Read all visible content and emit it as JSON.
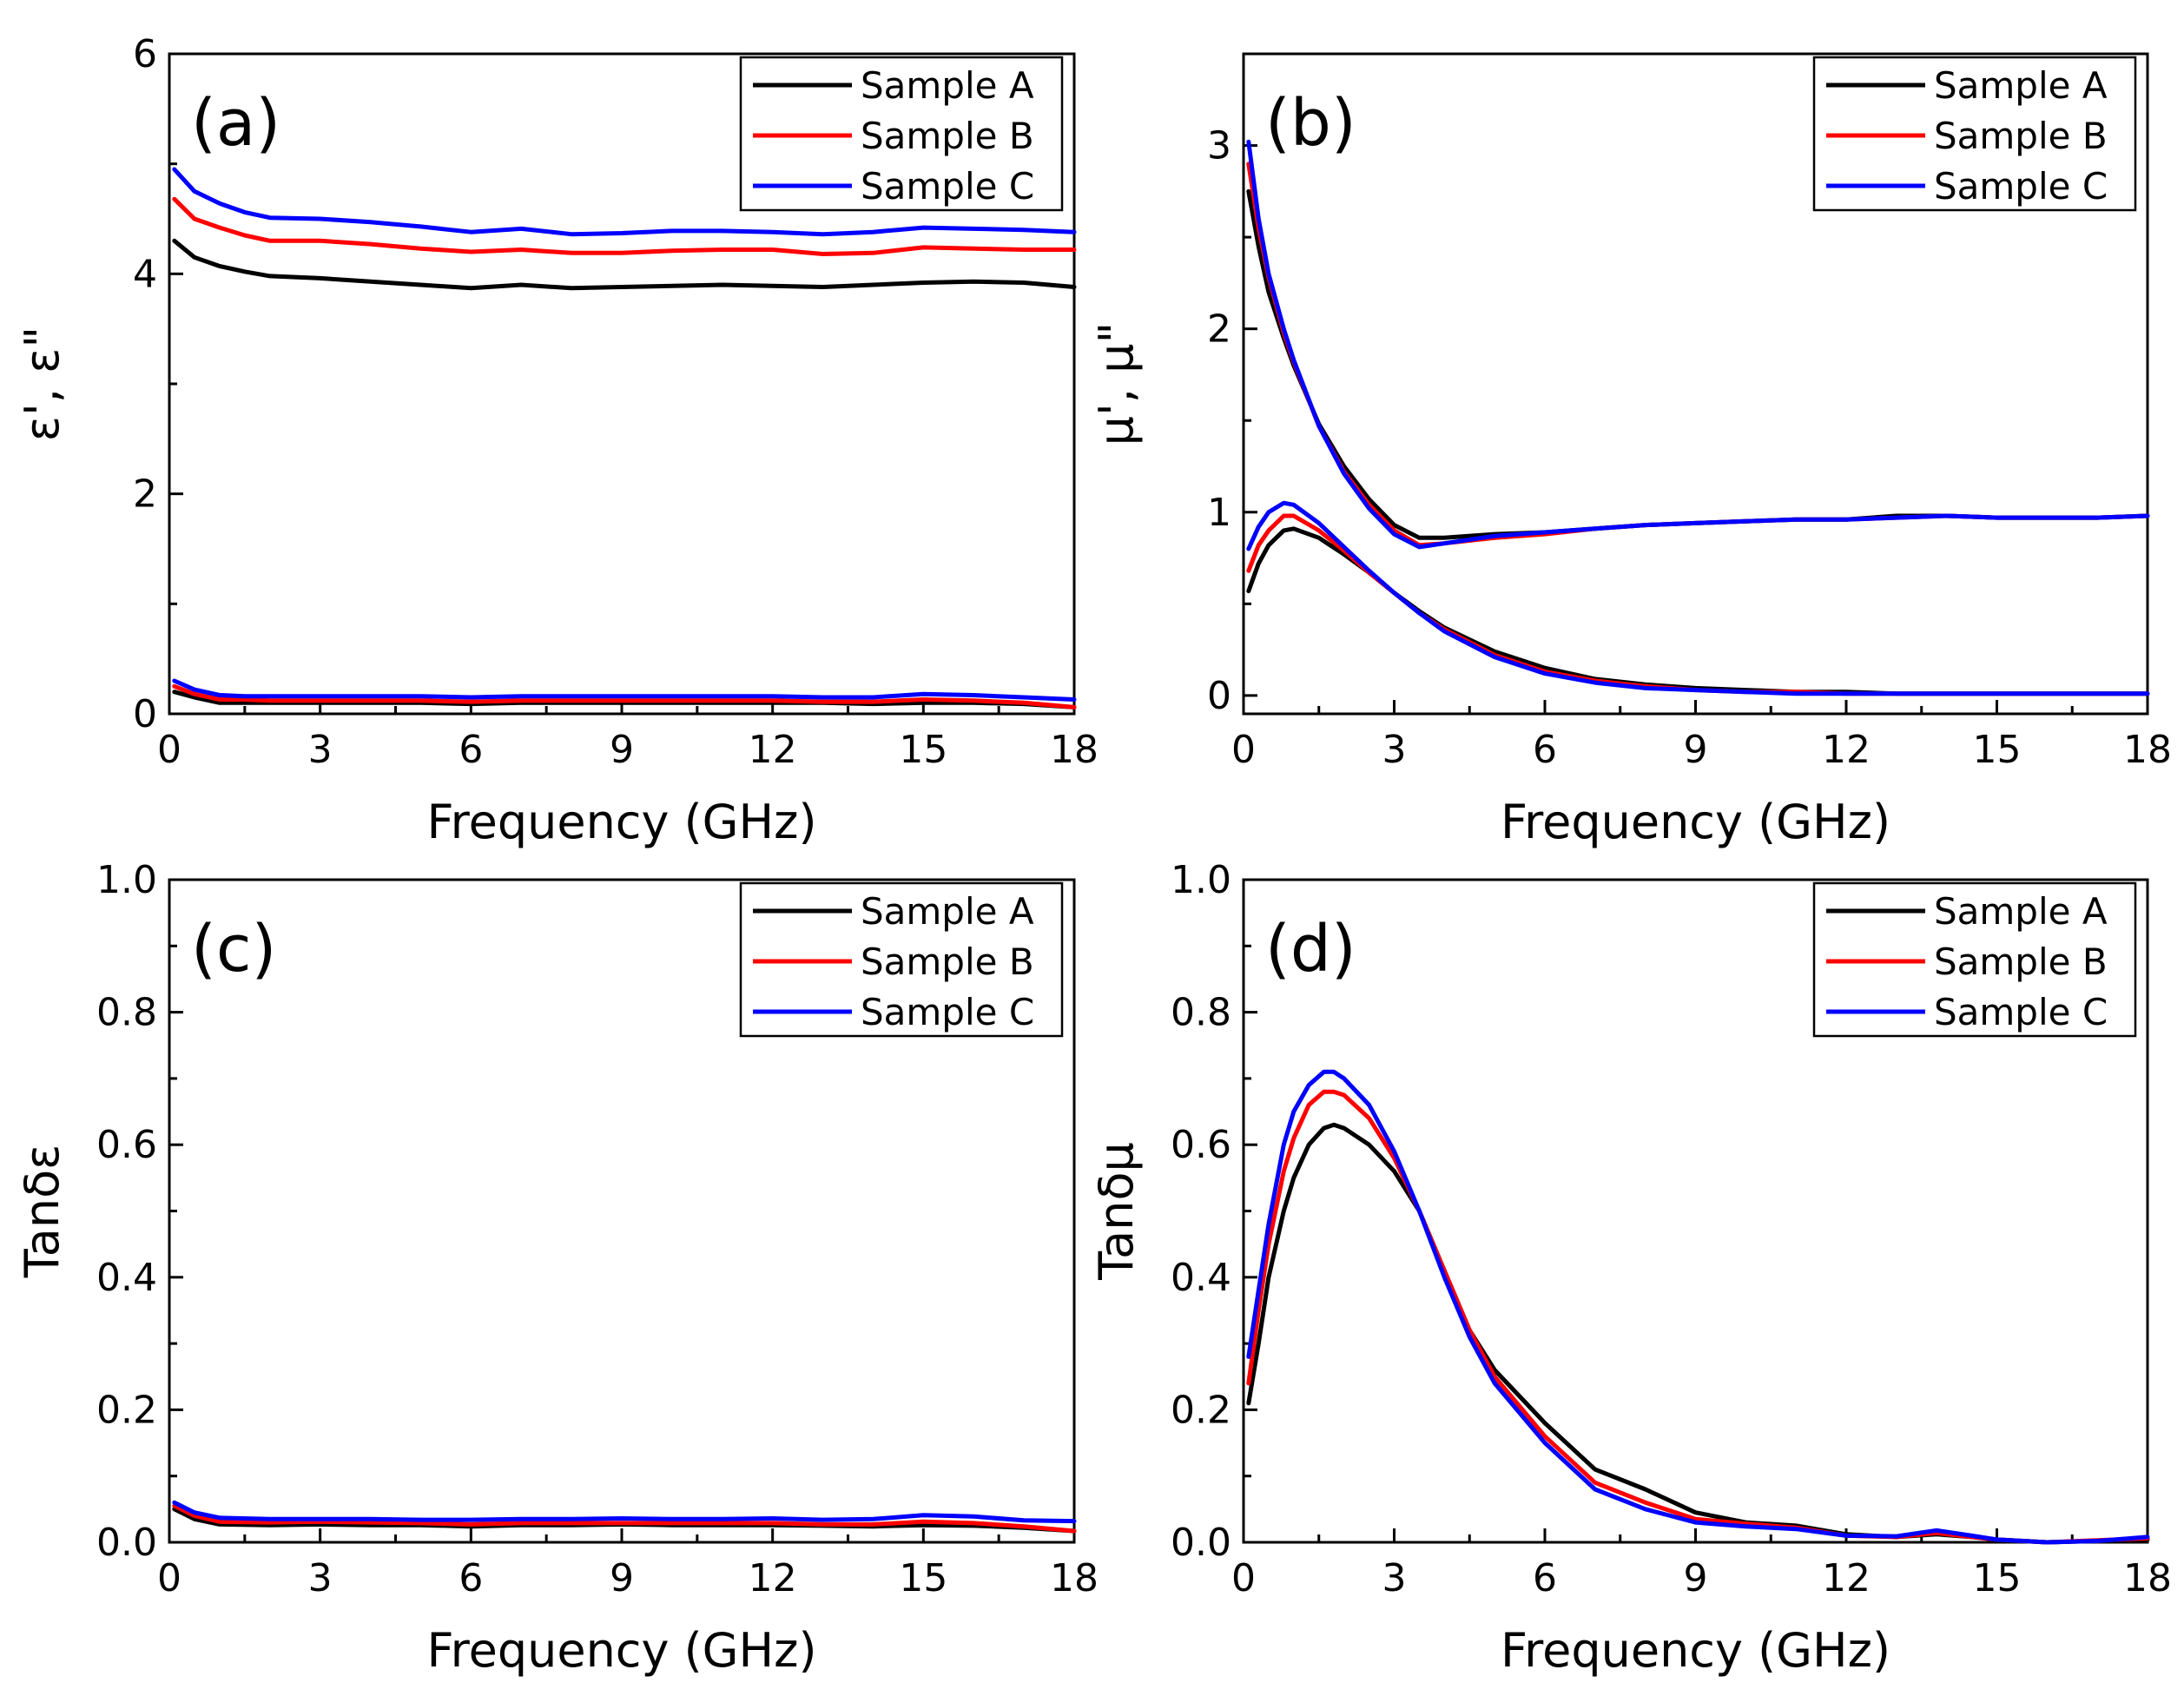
{
  "figure": {
    "legend_entries": [
      "Sample A",
      "Sample B",
      "Sample C"
    ],
    "series_colors": {
      "Sample A": "#000000",
      "Sample B": "#ff0000",
      "Sample C": "#0000ff"
    }
  },
  "chart_data": [
    {
      "panel": "(a)",
      "type": "line",
      "xlabel": "Frequency (GHz)",
      "ylabel": "ε', ε\"",
      "xlim": [
        0,
        18
      ],
      "ylim": [
        0,
        6
      ],
      "xticks": [
        0,
        3,
        6,
        9,
        12,
        15,
        18
      ],
      "yticks": [
        0,
        2,
        4,
        6
      ],
      "legend_position": "top-right",
      "x": [
        0.1,
        0.5,
        1,
        1.5,
        2,
        3,
        4,
        5,
        6,
        7,
        8,
        9,
        10,
        11,
        12,
        13,
        14,
        15,
        16,
        17,
        18
      ],
      "series": [
        {
          "name": "Sample A",
          "group": "ε'",
          "values": [
            4.3,
            4.15,
            4.07,
            4.02,
            3.98,
            3.96,
            3.93,
            3.9,
            3.87,
            3.9,
            3.87,
            3.88,
            3.89,
            3.9,
            3.89,
            3.88,
            3.9,
            3.92,
            3.93,
            3.92,
            3.88
          ]
        },
        {
          "name": "Sample B",
          "group": "ε'",
          "values": [
            4.68,
            4.5,
            4.42,
            4.35,
            4.3,
            4.3,
            4.27,
            4.23,
            4.2,
            4.22,
            4.19,
            4.19,
            4.21,
            4.22,
            4.22,
            4.18,
            4.19,
            4.24,
            4.23,
            4.22,
            4.22
          ]
        },
        {
          "name": "Sample C",
          "group": "ε'",
          "values": [
            4.95,
            4.75,
            4.64,
            4.56,
            4.51,
            4.5,
            4.47,
            4.43,
            4.38,
            4.41,
            4.36,
            4.37,
            4.39,
            4.39,
            4.38,
            4.36,
            4.38,
            4.42,
            4.41,
            4.4,
            4.38
          ]
        },
        {
          "name": "Sample A",
          "group": "ε\"",
          "values": [
            0.2,
            0.15,
            0.1,
            0.1,
            0.1,
            0.1,
            0.1,
            0.1,
            0.09,
            0.1,
            0.1,
            0.1,
            0.1,
            0.1,
            0.1,
            0.1,
            0.09,
            0.1,
            0.1,
            0.09,
            0.06
          ]
        },
        {
          "name": "Sample B",
          "group": "ε\"",
          "values": [
            0.25,
            0.18,
            0.13,
            0.13,
            0.12,
            0.12,
            0.12,
            0.12,
            0.11,
            0.12,
            0.12,
            0.12,
            0.12,
            0.12,
            0.12,
            0.11,
            0.11,
            0.13,
            0.12,
            0.1,
            0.06
          ]
        },
        {
          "name": "Sample C",
          "group": "ε\"",
          "values": [
            0.3,
            0.22,
            0.17,
            0.16,
            0.16,
            0.16,
            0.16,
            0.16,
            0.15,
            0.16,
            0.16,
            0.16,
            0.16,
            0.16,
            0.16,
            0.15,
            0.15,
            0.18,
            0.17,
            0.15,
            0.13
          ]
        }
      ]
    },
    {
      "panel": "(b)",
      "type": "line",
      "xlabel": "Frequency (GHz)",
      "ylabel": "μ', μ\"",
      "xlim": [
        0,
        18
      ],
      "ylim": [
        -0.1,
        3.5
      ],
      "xticks": [
        0,
        3,
        6,
        9,
        12,
        15,
        18
      ],
      "yticks": [
        0,
        1,
        2,
        3
      ],
      "legend_position": "top-right",
      "x": [
        0.1,
        0.3,
        0.5,
        0.8,
        1,
        1.5,
        2,
        2.5,
        3,
        3.5,
        4,
        5,
        6,
        7,
        8,
        9,
        10,
        11,
        12,
        13,
        14,
        15,
        16,
        17,
        18
      ],
      "series": [
        {
          "name": "Sample A",
          "group": "μ'",
          "values": [
            2.75,
            2.45,
            2.2,
            1.95,
            1.8,
            1.48,
            1.25,
            1.07,
            0.93,
            0.86,
            0.86,
            0.88,
            0.89,
            0.91,
            0.93,
            0.94,
            0.95,
            0.96,
            0.96,
            0.98,
            0.98,
            0.97,
            0.97,
            0.97,
            0.98
          ]
        },
        {
          "name": "Sample B",
          "group": "μ'",
          "values": [
            2.9,
            2.55,
            2.28,
            1.98,
            1.82,
            1.47,
            1.22,
            1.04,
            0.9,
            0.82,
            0.83,
            0.86,
            0.88,
            0.91,
            0.93,
            0.94,
            0.95,
            0.96,
            0.96,
            0.97,
            0.98,
            0.97,
            0.97,
            0.97,
            0.98
          ]
        },
        {
          "name": "Sample C",
          "group": "μ'",
          "values": [
            3.02,
            2.6,
            2.3,
            2.0,
            1.83,
            1.47,
            1.21,
            1.02,
            0.88,
            0.81,
            0.83,
            0.87,
            0.89,
            0.91,
            0.93,
            0.94,
            0.95,
            0.96,
            0.96,
            0.97,
            0.98,
            0.97,
            0.97,
            0.97,
            0.98
          ]
        },
        {
          "name": "Sample A",
          "group": "μ\"",
          "values": [
            0.57,
            0.72,
            0.82,
            0.9,
            0.91,
            0.86,
            0.77,
            0.67,
            0.56,
            0.46,
            0.37,
            0.24,
            0.15,
            0.09,
            0.06,
            0.04,
            0.03,
            0.02,
            0.02,
            0.01,
            0.01,
            0.01,
            0.01,
            0.01,
            0.01
          ]
        },
        {
          "name": "Sample B",
          "group": "μ\"",
          "values": [
            0.68,
            0.82,
            0.9,
            0.98,
            0.98,
            0.9,
            0.79,
            0.67,
            0.56,
            0.45,
            0.36,
            0.22,
            0.13,
            0.08,
            0.05,
            0.03,
            0.02,
            0.02,
            0.01,
            0.01,
            0.01,
            0.01,
            0.01,
            0.01,
            0.01
          ]
        },
        {
          "name": "Sample C",
          "group": "μ\"",
          "values": [
            0.8,
            0.92,
            1.0,
            1.05,
            1.04,
            0.94,
            0.81,
            0.68,
            0.56,
            0.45,
            0.35,
            0.21,
            0.12,
            0.07,
            0.04,
            0.03,
            0.02,
            0.01,
            0.01,
            0.01,
            0.01,
            0.01,
            0.01,
            0.01,
            0.01
          ]
        }
      ]
    },
    {
      "panel": "(c)",
      "type": "line",
      "xlabel": "Frequency (GHz)",
      "ylabel": "Tanδε",
      "xlim": [
        0,
        18
      ],
      "ylim": [
        0,
        1
      ],
      "xticks": [
        0,
        3,
        6,
        9,
        12,
        15,
        18
      ],
      "yticks": [
        0.0,
        0.2,
        0.4,
        0.6,
        0.8,
        1.0
      ],
      "ytick_labels": [
        "0.0",
        "0.2",
        "0.4",
        "0.6",
        "0.8",
        "1.0"
      ],
      "legend_position": "top-right",
      "x": [
        0.1,
        0.5,
        1,
        2,
        3,
        4,
        5,
        6,
        7,
        8,
        9,
        10,
        11,
        12,
        13,
        14,
        15,
        16,
        17,
        18
      ],
      "series": [
        {
          "name": "Sample A",
          "values": [
            0.05,
            0.035,
            0.027,
            0.026,
            0.027,
            0.026,
            0.026,
            0.024,
            0.026,
            0.026,
            0.027,
            0.026,
            0.026,
            0.026,
            0.025,
            0.024,
            0.026,
            0.025,
            0.022,
            0.017
          ]
        },
        {
          "name": "Sample B",
          "values": [
            0.055,
            0.04,
            0.031,
            0.03,
            0.031,
            0.03,
            0.029,
            0.027,
            0.029,
            0.029,
            0.029,
            0.029,
            0.029,
            0.029,
            0.027,
            0.027,
            0.031,
            0.029,
            0.024,
            0.017
          ]
        },
        {
          "name": "Sample C",
          "values": [
            0.06,
            0.045,
            0.037,
            0.035,
            0.035,
            0.035,
            0.034,
            0.034,
            0.035,
            0.035,
            0.036,
            0.035,
            0.035,
            0.036,
            0.034,
            0.035,
            0.041,
            0.039,
            0.033,
            0.032
          ]
        }
      ]
    },
    {
      "panel": "(d)",
      "type": "line",
      "xlabel": "Frequency (GHz)",
      "ylabel": "Tanδμ",
      "xlim": [
        0,
        18
      ],
      "ylim": [
        0,
        1
      ],
      "xticks": [
        0,
        3,
        6,
        9,
        12,
        15,
        18
      ],
      "yticks": [
        0.0,
        0.2,
        0.4,
        0.6,
        0.8,
        1.0
      ],
      "ytick_labels": [
        "0.0",
        "0.2",
        "0.4",
        "0.6",
        "0.8",
        "1.0"
      ],
      "legend_position": "top-right",
      "x": [
        0.1,
        0.3,
        0.5,
        0.8,
        1,
        1.3,
        1.6,
        1.8,
        2,
        2.5,
        3,
        3.5,
        4,
        4.5,
        5,
        6,
        7,
        8,
        9,
        10,
        11,
        12,
        13,
        13.8,
        14.5,
        15,
        16,
        17,
        18
      ],
      "series": [
        {
          "name": "Sample A",
          "values": [
            0.21,
            0.3,
            0.4,
            0.5,
            0.55,
            0.6,
            0.625,
            0.63,
            0.625,
            0.6,
            0.56,
            0.5,
            0.41,
            0.32,
            0.26,
            0.18,
            0.11,
            0.08,
            0.045,
            0.03,
            0.025,
            0.012,
            0.008,
            0.012,
            0.008,
            0.004,
            0.0,
            0.002,
            0.004
          ]
        },
        {
          "name": "Sample B",
          "values": [
            0.24,
            0.35,
            0.45,
            0.56,
            0.61,
            0.66,
            0.68,
            0.68,
            0.675,
            0.64,
            0.58,
            0.5,
            0.41,
            0.32,
            0.25,
            0.16,
            0.09,
            0.06,
            0.035,
            0.028,
            0.022,
            0.01,
            0.008,
            0.014,
            0.008,
            0.004,
            0.0,
            0.003,
            0.006
          ]
        },
        {
          "name": "Sample C",
          "values": [
            0.28,
            0.38,
            0.48,
            0.6,
            0.65,
            0.69,
            0.71,
            0.71,
            0.7,
            0.66,
            0.59,
            0.5,
            0.4,
            0.31,
            0.24,
            0.15,
            0.08,
            0.05,
            0.03,
            0.024,
            0.02,
            0.01,
            0.009,
            0.018,
            0.01,
            0.004,
            0.0,
            0.002,
            0.008
          ]
        }
      ]
    }
  ]
}
